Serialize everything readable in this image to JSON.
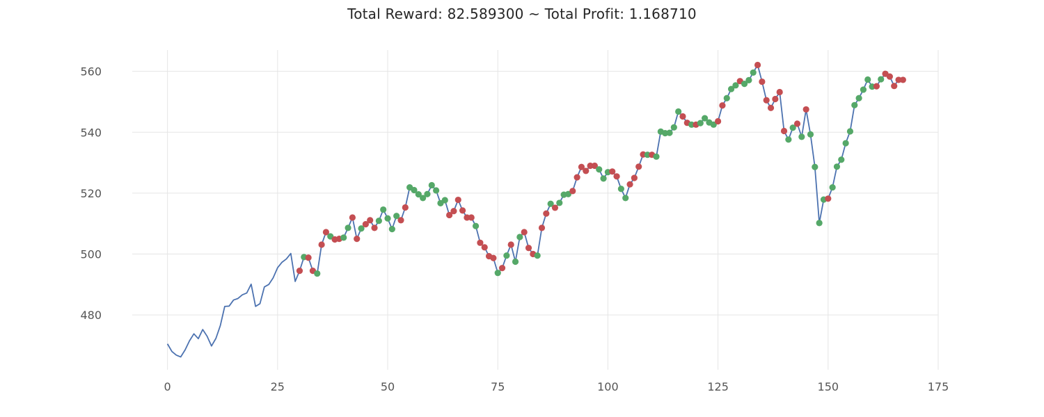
{
  "chart_data": {
    "type": "line",
    "title": "Total Reward: 82.589300 ~ Total Profit: 1.168710",
    "xlabel": "",
    "ylabel": "",
    "xlim": [
      -8,
      175
    ],
    "ylim": [
      462,
      567
    ],
    "grid": true,
    "xticks": [
      0,
      25,
      50,
      75,
      100,
      125,
      150,
      175
    ],
    "yticks": [
      480,
      500,
      520,
      540,
      560
    ],
    "colors": {
      "line": "#4c72b0",
      "short": "#c44e52",
      "long": "#55a868",
      "grid": "#e5e5e5"
    },
    "series": [
      {
        "values": [
          470.5,
          468.0,
          466.8,
          466.2,
          468.5,
          471.5,
          473.8,
          472.2,
          475.2,
          473.0,
          469.8,
          472.3,
          476.5,
          482.8,
          482.9,
          484.9,
          485.4,
          486.6,
          487.2,
          490.1,
          482.8,
          483.7,
          489.2,
          490.0,
          492.2,
          495.5,
          497.3,
          498.4,
          500.2,
          491.0,
          494.5,
          499.0,
          498.8,
          494.5,
          493.6,
          503.1,
          507.2,
          505.8,
          504.8,
          505.0,
          505.4,
          508.6,
          512.0,
          505.0,
          508.4,
          509.8,
          511.1,
          508.6,
          510.9,
          514.6,
          511.7,
          508.2,
          512.5,
          511.1,
          515.3,
          521.9,
          521.0,
          519.6,
          518.4,
          519.7,
          522.6,
          520.9,
          516.7,
          517.7,
          512.8,
          514.1,
          517.8,
          514.3,
          512.0,
          512.0,
          509.2,
          503.7,
          502.2,
          499.3,
          498.7,
          493.8,
          495.4,
          499.5,
          503.1,
          497.5,
          505.6,
          507.2,
          502.0,
          500.0,
          499.5,
          508.6,
          513.3,
          516.5,
          515.2,
          516.8,
          519.5,
          519.7,
          520.7,
          525.2,
          528.6,
          527.3,
          529.0,
          529.0,
          527.8,
          524.8,
          526.9,
          527.1,
          525.5,
          521.4,
          518.4,
          522.9,
          525.0,
          528.7,
          532.7,
          532.6,
          532.6,
          532.0,
          540.2,
          539.7,
          539.8,
          541.6,
          546.8,
          545.2,
          543.1,
          542.5,
          542.5,
          543.0,
          544.6,
          543.2,
          542.5,
          543.6,
          548.8,
          551.2,
          554.2,
          555.4,
          556.8,
          555.9,
          557.1,
          559.6,
          562.1,
          556.6,
          550.5,
          548.0,
          550.9,
          553.2,
          540.4,
          537.6,
          541.5,
          542.8,
          538.5,
          547.5,
          539.3,
          528.6,
          510.2,
          517.9,
          518.2,
          521.9,
          528.7,
          531.0,
          536.4,
          540.3,
          548.9,
          551.2,
          554.0,
          557.3,
          555.0,
          555.1,
          557.4,
          559.2,
          558.3,
          555.2,
          557.2,
          557.2
        ]
      }
    ],
    "markers_short_x": [
      30,
      32,
      33,
      35,
      36,
      38,
      39,
      42,
      43,
      45,
      46,
      47,
      53,
      54,
      64,
      65,
      66,
      67,
      68,
      69,
      71,
      72,
      73,
      74,
      76,
      78,
      81,
      82,
      83,
      85,
      86,
      88,
      92,
      93,
      94,
      95,
      96,
      97,
      101,
      102,
      105,
      106,
      107,
      108,
      110,
      117,
      118,
      120,
      125,
      126,
      130,
      134,
      135,
      136,
      137,
      138,
      139,
      140,
      143,
      145,
      150,
      161,
      163,
      164,
      165,
      166,
      167
    ],
    "markers_long_x": [
      31,
      34,
      37,
      40,
      41,
      44,
      48,
      49,
      50,
      51,
      52,
      55,
      56,
      57,
      58,
      59,
      60,
      61,
      62,
      63,
      70,
      75,
      77,
      79,
      80,
      84,
      87,
      89,
      90,
      91,
      98,
      99,
      100,
      103,
      104,
      109,
      111,
      112,
      113,
      114,
      115,
      116,
      119,
      121,
      122,
      123,
      124,
      127,
      128,
      129,
      131,
      132,
      133,
      141,
      142,
      144,
      146,
      147,
      148,
      149,
      151,
      152,
      153,
      154,
      155,
      156,
      157,
      158,
      159,
      160,
      162
    ]
  }
}
